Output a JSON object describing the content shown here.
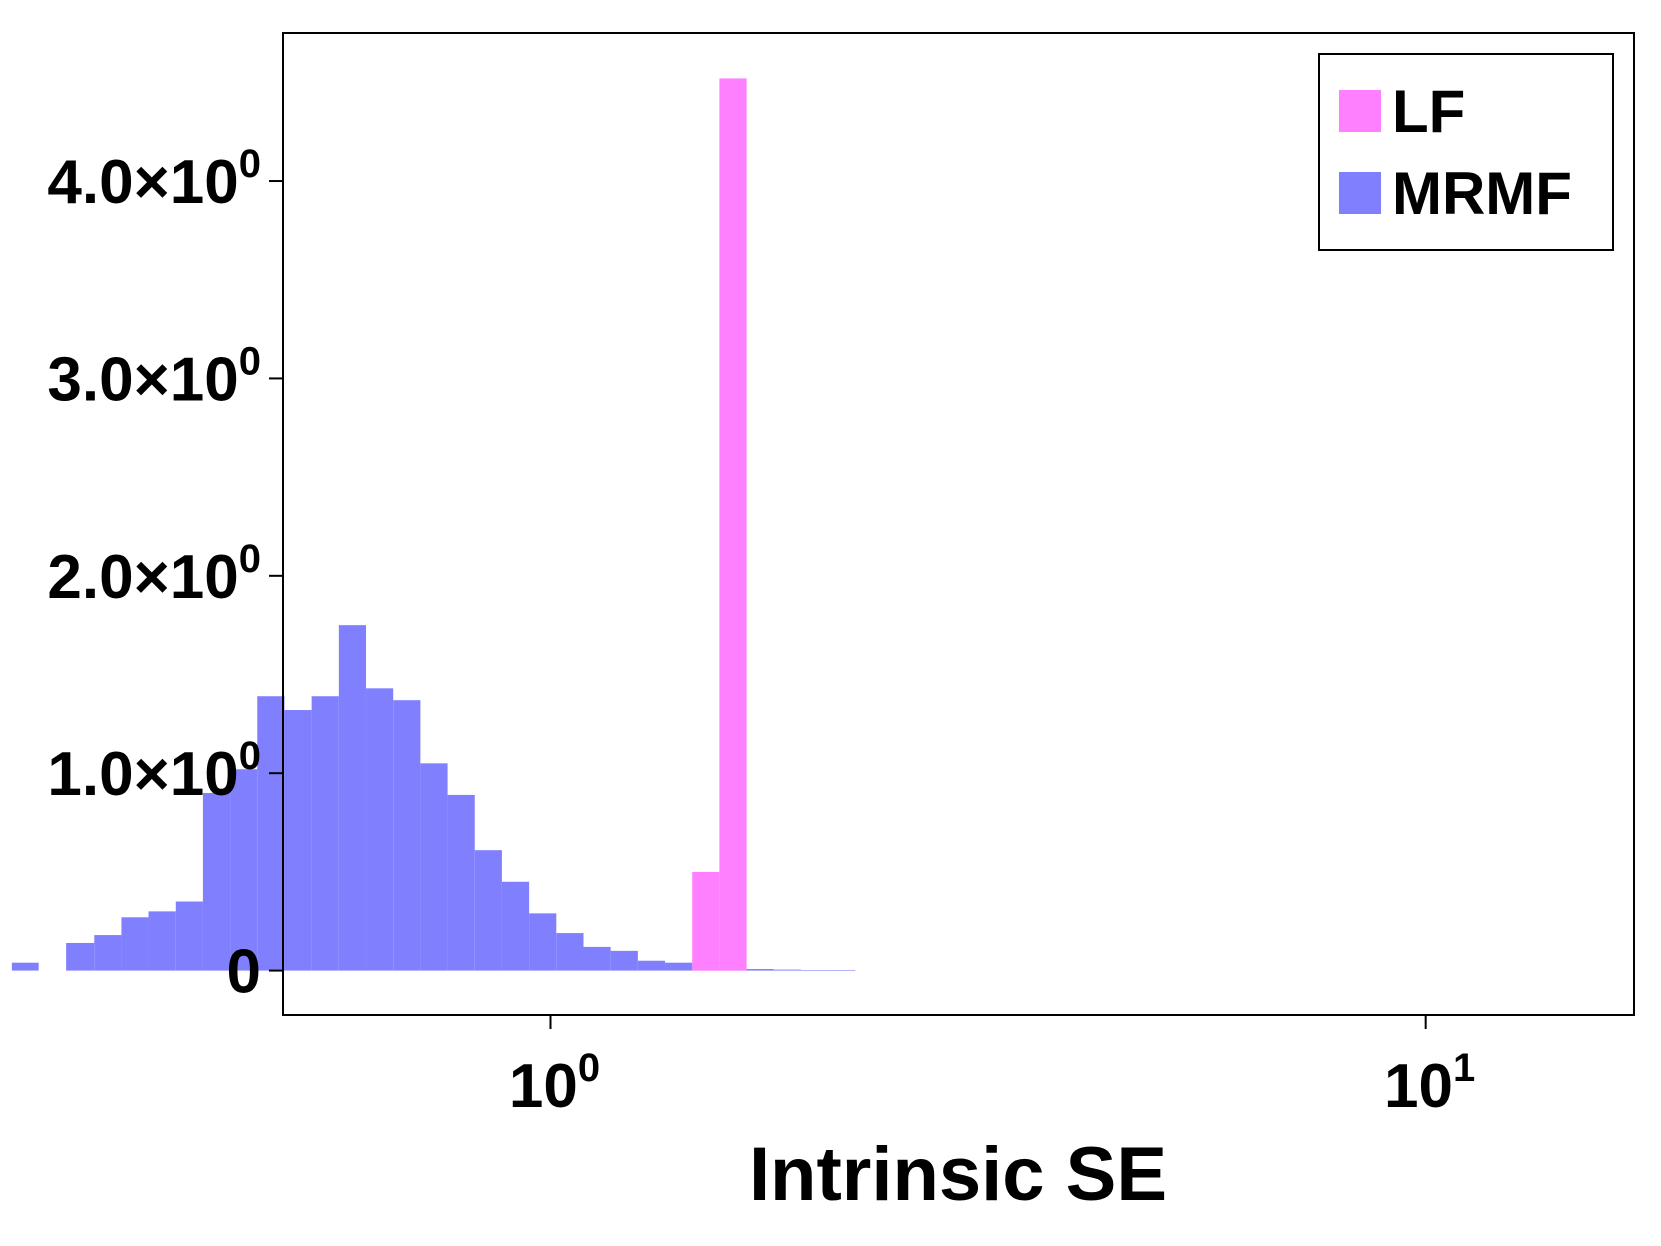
{
  "chart_data": {
    "type": "bar",
    "xscale": "log",
    "xlabel": "Intrinsic SE",
    "ylabel": "",
    "title": "",
    "xlim": [
      0.4947,
      17.3
    ],
    "ylim": [
      -0.225,
      4.75
    ],
    "grid": false,
    "legend_position": "top-right",
    "x_ticks": [
      {
        "value": 1,
        "base": "10",
        "exp": "0"
      },
      {
        "value": 10,
        "base": "10",
        "exp": "1"
      }
    ],
    "y_ticks": [
      {
        "value": 0,
        "base": "0",
        "exp": ""
      },
      {
        "value": 1,
        "base": "1.0×10",
        "exp": "0"
      },
      {
        "value": 2,
        "base": "2.0×10",
        "exp": "0"
      },
      {
        "value": 3,
        "base": "3.0×10",
        "exp": "0"
      },
      {
        "value": 4,
        "base": "4.0×10",
        "exp": "0"
      }
    ],
    "series": [
      {
        "name": "MRMF",
        "color": "#8080ff",
        "bins": [
          {
            "x0": 0.2424,
            "x1": 0.2601,
            "y": 0.04
          },
          {
            "x0": 0.2796,
            "x1": 0.3011,
            "y": 0.14
          },
          {
            "x0": 0.3011,
            "x1": 0.3234,
            "y": 0.18
          },
          {
            "x0": 0.3234,
            "x1": 0.3473,
            "y": 0.27
          },
          {
            "x0": 0.3473,
            "x1": 0.3731,
            "y": 0.3
          },
          {
            "x0": 0.3731,
            "x1": 0.4007,
            "y": 0.35
          },
          {
            "x0": 0.4007,
            "x1": 0.4304,
            "y": 0.9
          },
          {
            "x0": 0.4304,
            "x1": 0.4623,
            "y": 1.02
          },
          {
            "x0": 0.4623,
            "x1": 0.4966,
            "y": 1.39
          },
          {
            "x0": 0.4966,
            "x1": 0.5334,
            "y": 1.32
          },
          {
            "x0": 0.5334,
            "x1": 0.573,
            "y": 1.39
          },
          {
            "x0": 0.573,
            "x1": 0.6155,
            "y": 1.75
          },
          {
            "x0": 0.6155,
            "x1": 0.6611,
            "y": 1.43
          },
          {
            "x0": 0.6611,
            "x1": 0.7101,
            "y": 1.37
          },
          {
            "x0": 0.7101,
            "x1": 0.7628,
            "y": 1.05
          },
          {
            "x0": 0.7628,
            "x1": 0.8193,
            "y": 0.89
          },
          {
            "x0": 0.8193,
            "x1": 0.88,
            "y": 0.61
          },
          {
            "x0": 0.88,
            "x1": 0.9453,
            "y": 0.45
          },
          {
            "x0": 0.9453,
            "x1": 1.0154,
            "y": 0.29
          },
          {
            "x0": 1.0154,
            "x1": 1.0907,
            "y": 0.19
          },
          {
            "x0": 1.0907,
            "x1": 1.1715,
            "y": 0.12
          },
          {
            "x0": 1.1715,
            "x1": 1.2584,
            "y": 0.1
          },
          {
            "x0": 1.2584,
            "x1": 1.3517,
            "y": 0.05
          },
          {
            "x0": 1.3517,
            "x1": 1.4519,
            "y": 0.04
          },
          {
            "x0": 1.4519,
            "x1": 1.5595,
            "y": 0.02
          },
          {
            "x0": 1.5595,
            "x1": 1.6751,
            "y": 0.012
          },
          {
            "x0": 1.6751,
            "x1": 1.7993,
            "y": 0.008
          },
          {
            "x0": 1.7993,
            "x1": 1.9327,
            "y": 0.005
          },
          {
            "x0": 1.9327,
            "x1": 2.076,
            "y": 0.003
          },
          {
            "x0": 2.076,
            "x1": 2.2299,
            "y": 0.002
          }
        ]
      },
      {
        "name": "LF",
        "color": "#ff80ff",
        "bins": [
          {
            "x0": 1.4519,
            "x1": 1.5595,
            "y": 0.5
          },
          {
            "x0": 1.5595,
            "x1": 1.6751,
            "y": 4.52
          }
        ]
      }
    ],
    "legend": [
      {
        "label": "LF",
        "color": "#ff80ff"
      },
      {
        "label": "MRMF",
        "color": "#8080ff"
      }
    ]
  }
}
